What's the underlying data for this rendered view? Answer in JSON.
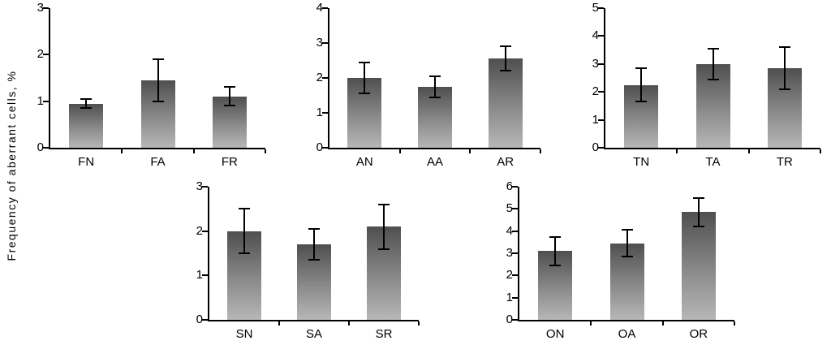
{
  "figure": {
    "ylabel": "Frequency of aberrant cells, %"
  },
  "chart_data": [
    {
      "type": "bar",
      "categories": [
        "FN",
        "FA",
        "FR"
      ],
      "values": [
        0.95,
        1.45,
        1.1
      ],
      "errors": [
        0.1,
        0.45,
        0.2
      ],
      "ylim": [
        0,
        3
      ],
      "yticks": [
        0,
        1,
        2,
        3
      ],
      "title": "",
      "xlabel": "",
      "ylabel": "Frequency of aberrant cells, %",
      "grid": false,
      "legend": "none"
    },
    {
      "type": "bar",
      "categories": [
        "AN",
        "AA",
        "AR"
      ],
      "values": [
        2.0,
        1.75,
        2.55
      ],
      "errors": [
        0.45,
        0.3,
        0.35
      ],
      "ylim": [
        0,
        4
      ],
      "yticks": [
        0,
        1,
        2,
        3,
        4
      ],
      "title": "",
      "xlabel": "",
      "ylabel": "Frequency of aberrant cells, %",
      "grid": false,
      "legend": "none"
    },
    {
      "type": "bar",
      "categories": [
        "TN",
        "TA",
        "TR"
      ],
      "values": [
        2.25,
        3.0,
        2.85
      ],
      "errors": [
        0.6,
        0.55,
        0.75
      ],
      "ylim": [
        0,
        5
      ],
      "yticks": [
        0,
        1,
        2,
        3,
        4,
        5
      ],
      "title": "",
      "xlabel": "",
      "ylabel": "Frequency of aberrant cells, %",
      "grid": false,
      "legend": "none"
    },
    {
      "type": "bar",
      "categories": [
        "SN",
        "SA",
        "SR"
      ],
      "values": [
        2.0,
        1.7,
        2.1
      ],
      "errors": [
        0.5,
        0.35,
        0.5
      ],
      "ylim": [
        0,
        3
      ],
      "yticks": [
        0,
        1,
        2,
        3
      ],
      "title": "",
      "xlabel": "",
      "ylabel": "Frequency of aberrant cells, %",
      "grid": false,
      "legend": "none"
    },
    {
      "type": "bar",
      "categories": [
        "ON",
        "OA",
        "OR"
      ],
      "values": [
        3.1,
        3.45,
        4.85
      ],
      "errors": [
        0.65,
        0.6,
        0.65
      ],
      "ylim": [
        0,
        6
      ],
      "yticks": [
        0,
        1,
        2,
        3,
        4,
        5,
        6
      ],
      "title": "",
      "xlabel": "",
      "ylabel": "Frequency of aberrant cells, %",
      "grid": false,
      "legend": "none"
    }
  ]
}
